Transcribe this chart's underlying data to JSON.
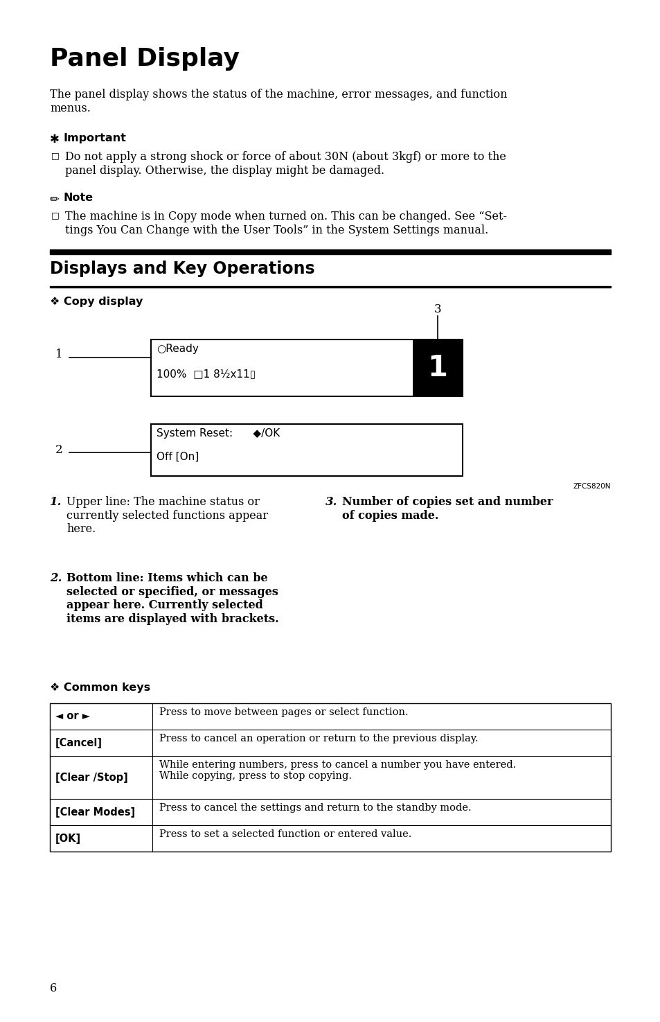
{
  "bg_color": "#ffffff",
  "title": "Panel Display",
  "intro_text": "The panel display shows the status of the machine, error messages, and function\nmenus.",
  "important_bullet": "Do not apply a strong shock or force of about 30N (about 3kgf) or more to the\npanel display. Otherwise, the display might be damaged.",
  "note_bullet": "The machine is in Copy mode when turned on. This can be changed. See “Set-\ntings You Can Change with the User Tools” in the System Settings manual.",
  "section_title": "Displays and Key Operations",
  "figure_code": "ZFCS820N",
  "desc1_text": "Upper line: The machine status or\ncurrently selected functions appear\nhere.",
  "desc3_text": "Number of copies set and number\nof copies made.",
  "desc2_text": "Bottom line: Items which can be\nselected or specified, or messages\nappear here. Currently selected\nitems are displayed with brackets.",
  "table_rows": [
    [
      "◄ or ►",
      "Press to move between pages or select function."
    ],
    [
      "[Cancel]",
      "Press to cancel an operation or return to the previous display."
    ],
    [
      "[Clear /Stop]",
      "While entering numbers, press to cancel a number you have entered.\nWhile copying, press to stop copying."
    ],
    [
      "[Clear Modes]",
      "Press to cancel the settings and return to the standby mode."
    ],
    [
      "[OK]",
      "Press to set a selected function or entered value."
    ]
  ],
  "page_number": "6"
}
